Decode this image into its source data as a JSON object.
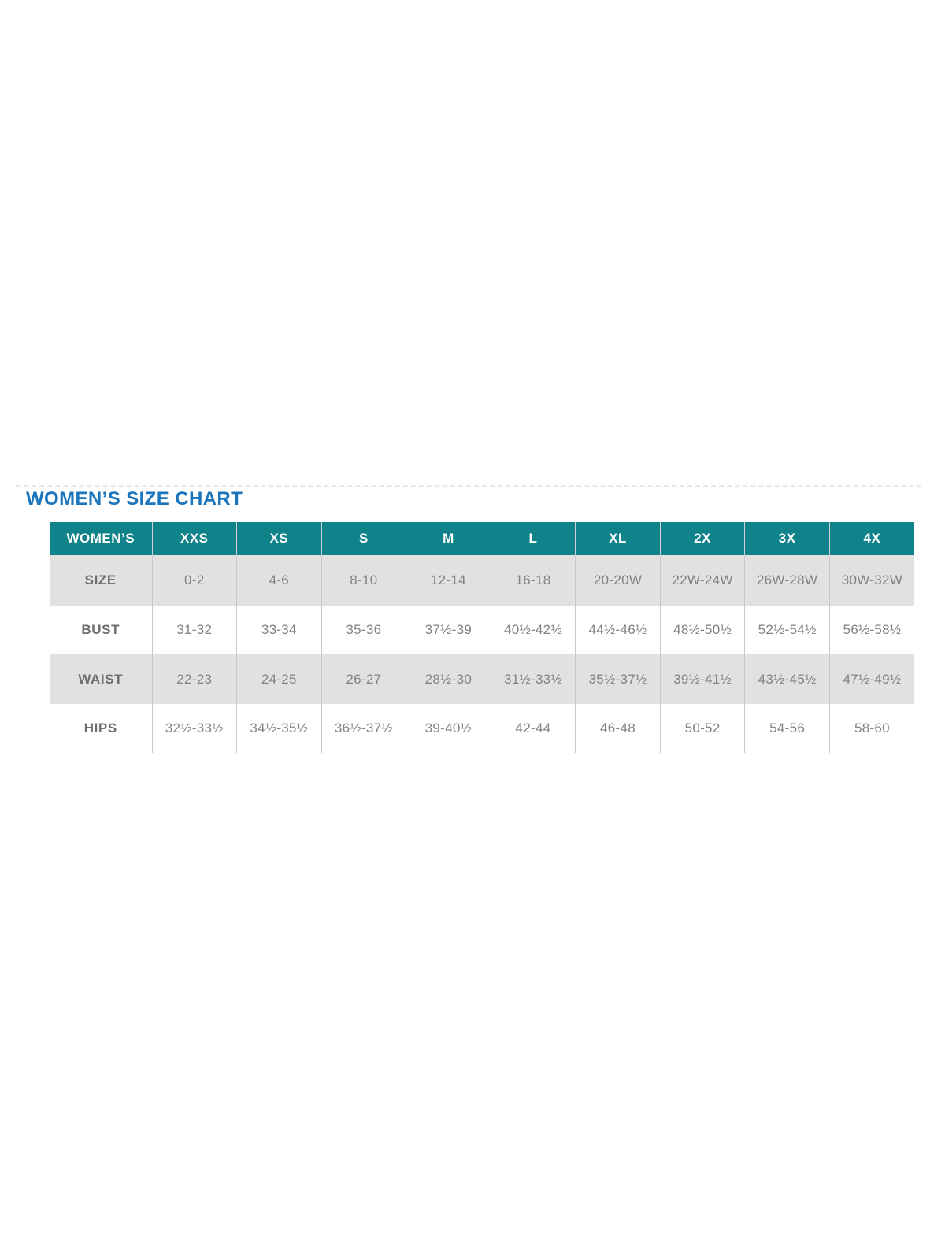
{
  "title": "WOMEN’S SIZE CHART",
  "colors": {
    "title_blue": "#1b75bc",
    "header_teal": "#0f828a",
    "header_text": "#ffffff",
    "shaded_row_bg": "#e1e1e2",
    "cell_text": "#808285",
    "label_text": "#6d6e71",
    "column_border": "#c7c8ca"
  },
  "table": {
    "header": [
      "WOMEN’S",
      "XXS",
      "XS",
      "S",
      "M",
      "L",
      "XL",
      "2X",
      "3X",
      "4X"
    ],
    "rows": [
      {
        "label": "SIZE",
        "values": [
          "0-2",
          "4-6",
          "8-10",
          "12-14",
          "16-18",
          "20-20W",
          "22W-24W",
          "26W-28W",
          "30W-32W"
        ]
      },
      {
        "label": "BUST",
        "values": [
          "31-32",
          "33-34",
          "35-36",
          "37½-39",
          "40½-42½",
          "44½-46½",
          "48½-50½",
          "52½-54½",
          "56½-58½"
        ]
      },
      {
        "label": "WAIST",
        "values": [
          "22-23",
          "24-25",
          "26-27",
          "28½-30",
          "31½-33½",
          "35½-37½",
          "39½-41½",
          "43½-45½",
          "47½-49½"
        ]
      },
      {
        "label": "HIPS",
        "values": [
          "32½-33½",
          "34½-35½",
          "36½-37½",
          "39-40½",
          "42-44",
          "46-48",
          "50-52",
          "54-56",
          "58-60"
        ]
      }
    ]
  }
}
